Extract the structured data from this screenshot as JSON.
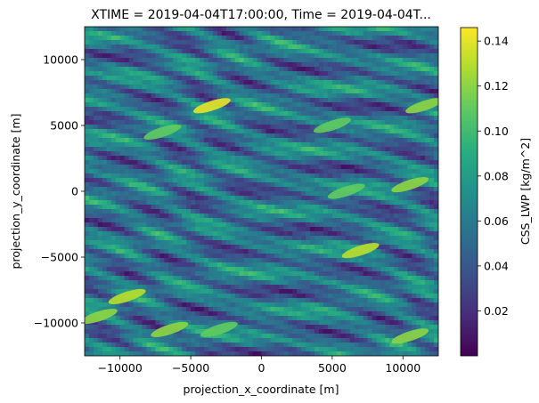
{
  "chart_data": {
    "type": "heatmap",
    "title": "XTIME = 2019-04-04T17:00:00, Time = 2019-04-04T...",
    "xlabel": "projection_x_coordinate [m]",
    "ylabel": "projection_y_coordinate [m]",
    "xlim": [
      -12500,
      12500
    ],
    "ylim": [
      -12500,
      12500
    ],
    "x_ticks": [
      -10000,
      -5000,
      0,
      5000,
      10000
    ],
    "x_tick_labels": [
      "−10000",
      "−5000",
      "0",
      "5000",
      "10000"
    ],
    "y_ticks": [
      -10000,
      -5000,
      0,
      5000,
      10000
    ],
    "y_tick_labels": [
      "−10000",
      "−5000",
      "0",
      "5000",
      "10000"
    ],
    "colorbar": {
      "label": "CSS_LWP [kg/m^2]",
      "colormap": "viridis",
      "range": [
        0.0,
        0.146
      ],
      "ticks": [
        0.02,
        0.04,
        0.06,
        0.08,
        0.1,
        0.12,
        0.14
      ],
      "tick_labels": [
        "0.02",
        "0.04",
        "0.06",
        "0.08",
        "0.10",
        "0.12",
        "0.14"
      ]
    },
    "grid": false,
    "field_description_visible": "liquid water path field with elongated streaks oriented from lower-left to upper-right",
    "highlights": [
      {
        "x": -3500,
        "y": 6500,
        "value": 0.14
      },
      {
        "x": 7000,
        "y": -4500,
        "value": 0.13
      },
      {
        "x": -9500,
        "y": -8000,
        "value": 0.13
      },
      {
        "x": 10500,
        "y": 500,
        "value": 0.12
      },
      {
        "x": 11500,
        "y": 6500,
        "value": 0.12
      },
      {
        "x": -7000,
        "y": 4500,
        "value": 0.11
      },
      {
        "x": 5000,
        "y": 5000,
        "value": 0.11
      },
      {
        "x": -11500,
        "y": -9500,
        "value": 0.12
      },
      {
        "x": -3000,
        "y": -10500,
        "value": 0.11
      },
      {
        "x": 10500,
        "y": -11000,
        "value": 0.12
      },
      {
        "x": 6000,
        "y": 0,
        "value": 0.11
      },
      {
        "x": -6500,
        "y": -10500,
        "value": 0.12
      }
    ]
  }
}
